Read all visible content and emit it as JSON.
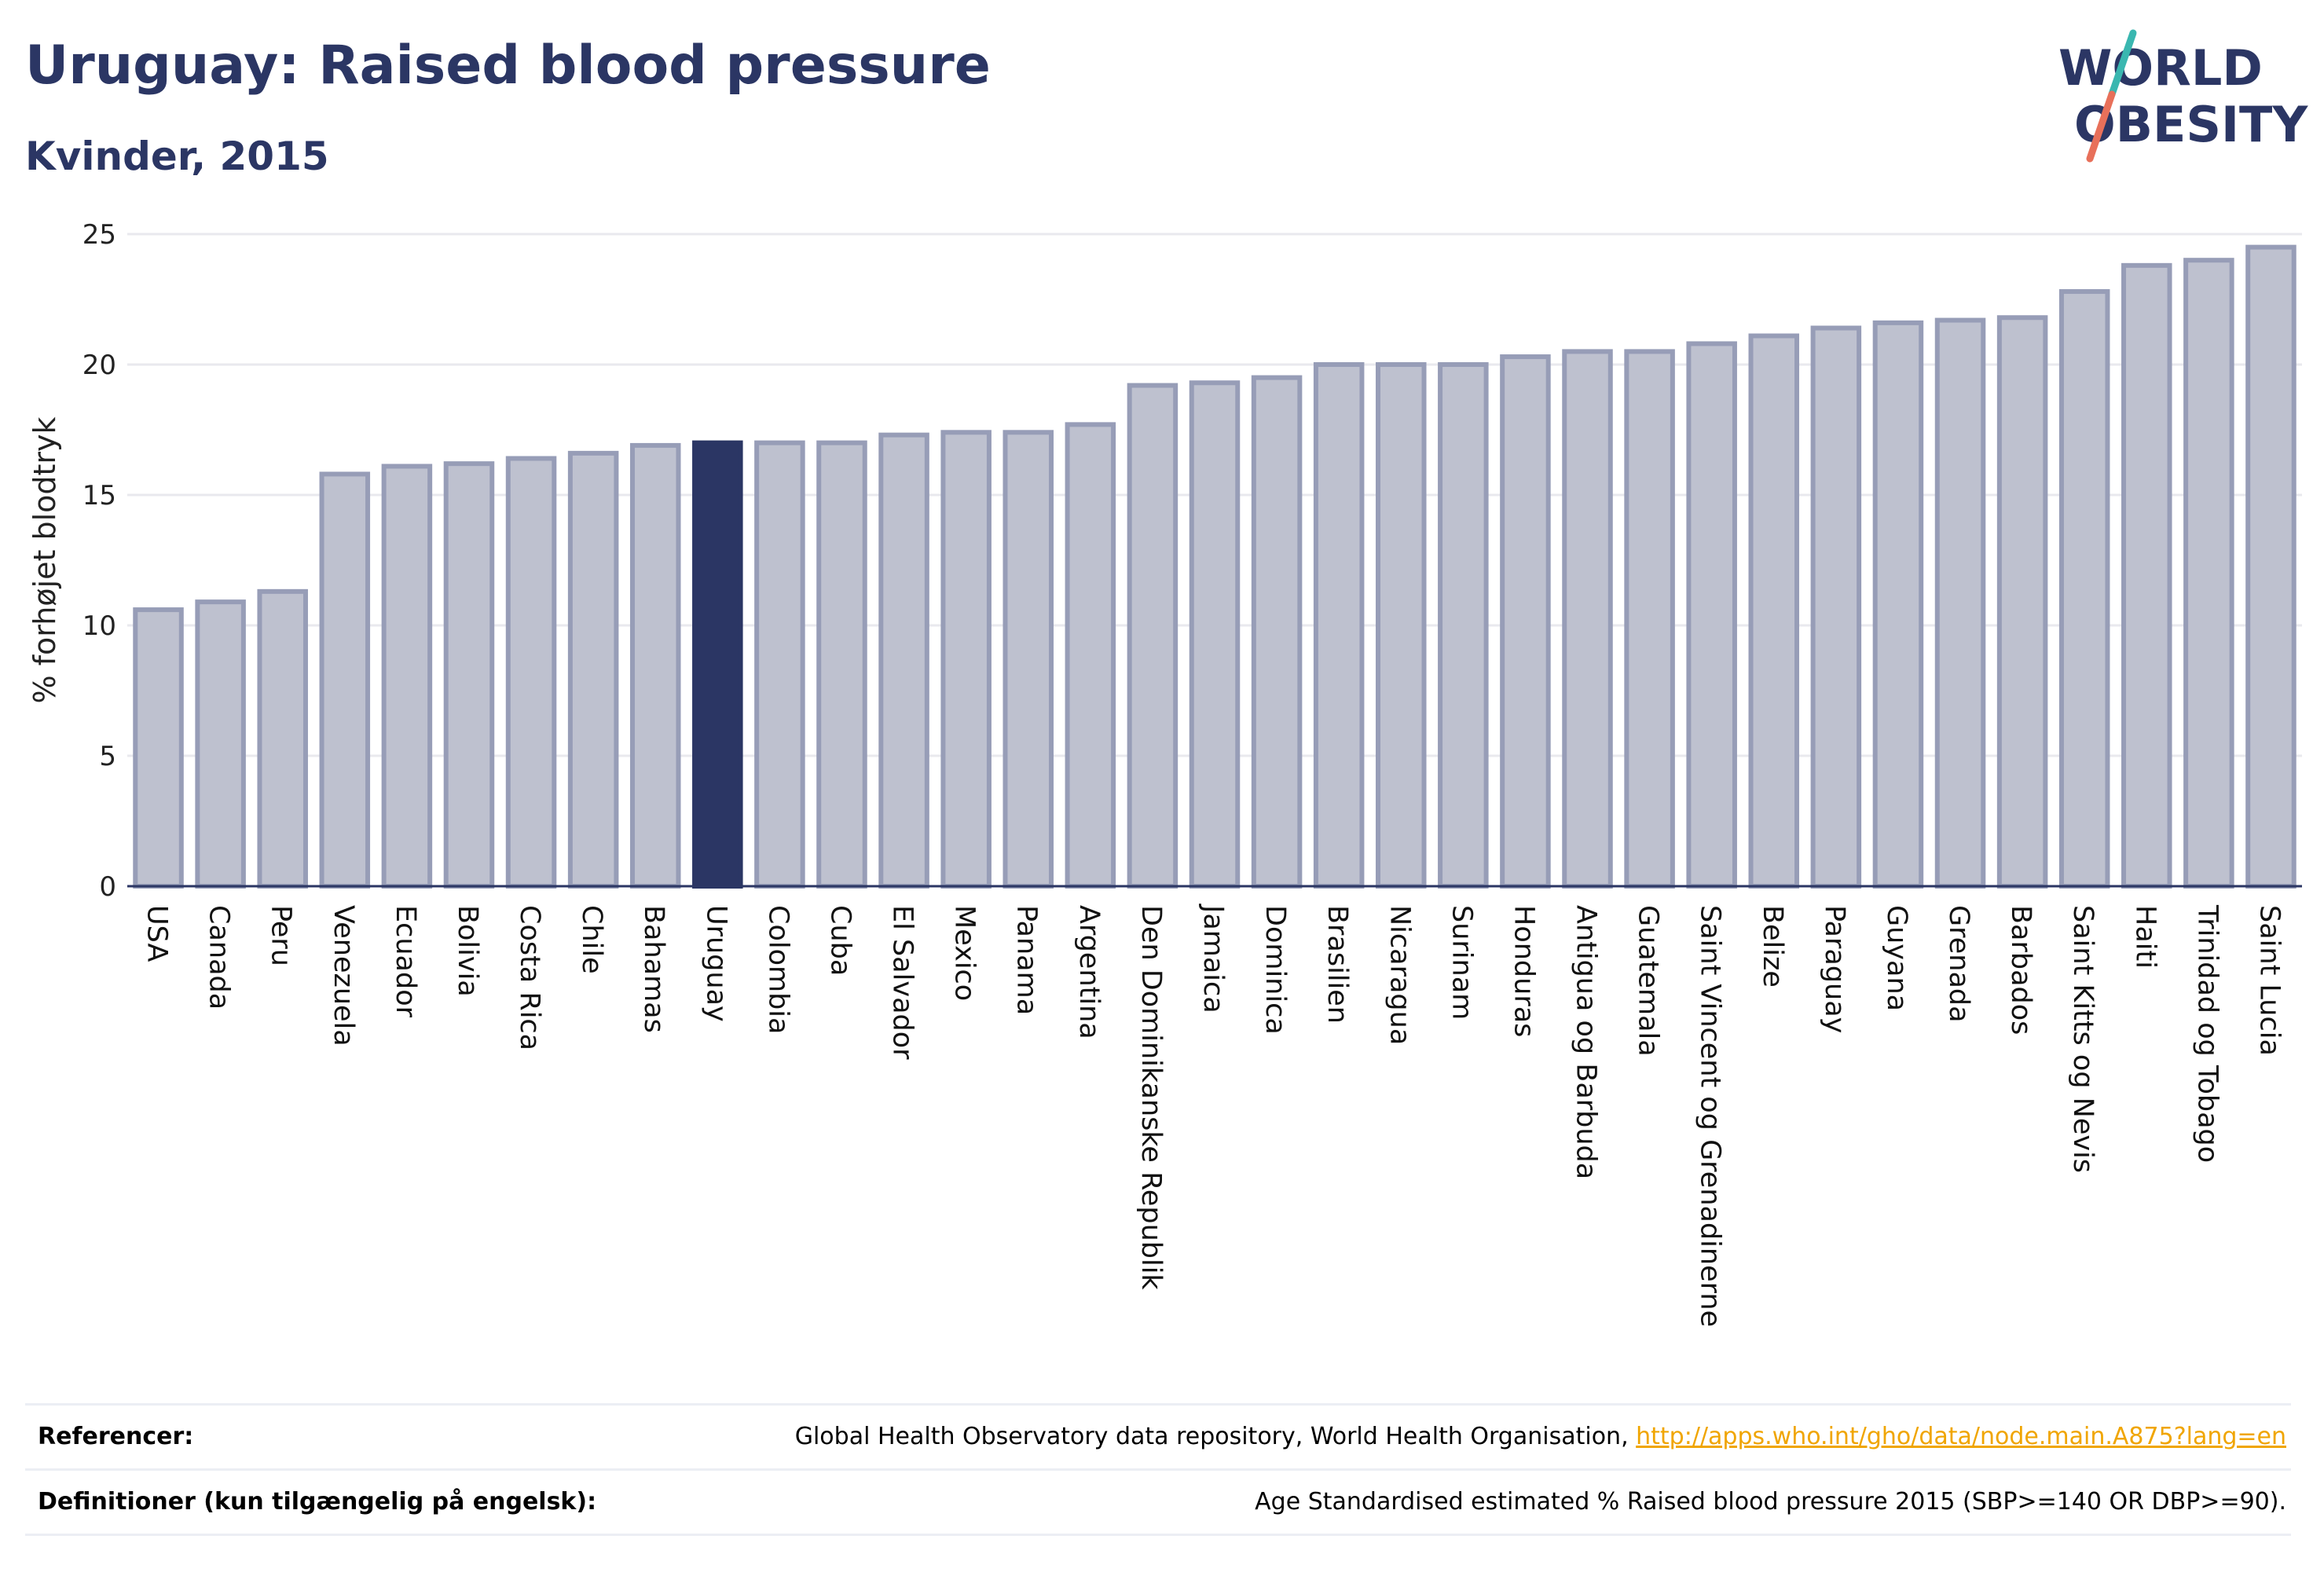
{
  "header": {
    "title": "Uruguay: Raised blood pressure",
    "subtitle": "Kvinder, 2015"
  },
  "logo": {
    "line1": "WORLD",
    "line2": "OBESITY"
  },
  "colors": {
    "highlight": "#2b3664",
    "bar_fill": "#bec1cf",
    "bar_stroke": "#979db7",
    "title": "#2b3664",
    "link": "#f0a500",
    "logo_slash_teal": "#3ab7b0",
    "logo_slash_coral": "#e8705a"
  },
  "chart_data": {
    "type": "bar",
    "title": "Uruguay: Raised blood pressure",
    "subtitle": "Kvinder, 2015",
    "ylabel": "% forhøjet blodtryk",
    "xlabel": "",
    "ylim": [
      0,
      25
    ],
    "yticks": [
      0,
      5,
      10,
      15,
      20,
      25
    ],
    "grid": true,
    "highlight": "Uruguay",
    "categories": [
      "USA",
      "Canada",
      "Peru",
      "Venezuela",
      "Ecuador",
      "Bolivia",
      "Costa Rica",
      "Chile",
      "Bahamas",
      "Uruguay",
      "Colombia",
      "Cuba",
      "El Salvador",
      "Mexico",
      "Panama",
      "Argentina",
      "Den Dominikanske Republik",
      "Jamaica",
      "Dominica",
      "Brasilien",
      "Nicaragua",
      "Surinam",
      "Honduras",
      "Antigua og Barbuda",
      "Guatemala",
      "Saint Vincent og Grenadinerne",
      "Belize",
      "Paraguay",
      "Guyana",
      "Grenada",
      "Barbados",
      "Saint Kitts og Nevis",
      "Haiti",
      "Trinidad og Tobago",
      "Saint Lucia"
    ],
    "values": [
      10.6,
      10.9,
      11.3,
      15.8,
      16.1,
      16.2,
      16.4,
      16.6,
      16.9,
      17.0,
      17.0,
      17.0,
      17.3,
      17.4,
      17.4,
      17.7,
      19.2,
      19.3,
      19.5,
      20.0,
      20.0,
      20.0,
      20.3,
      20.5,
      20.5,
      20.8,
      21.1,
      21.4,
      21.6,
      21.7,
      21.8,
      22.8,
      23.8,
      24.0,
      24.5
    ]
  },
  "references": [
    {
      "label": "Referencer:",
      "text": "Global Health Observatory data repository, World Health Organisation, ",
      "link": "http://apps.who.int/gho/data/node.main.A875?lang=en"
    },
    {
      "label": "Definitioner (kun tilgængelig på engelsk):",
      "text": "Age Standardised estimated % Raised blood pressure 2015 (SBP>=140 OR DBP>=90).",
      "link": ""
    }
  ]
}
